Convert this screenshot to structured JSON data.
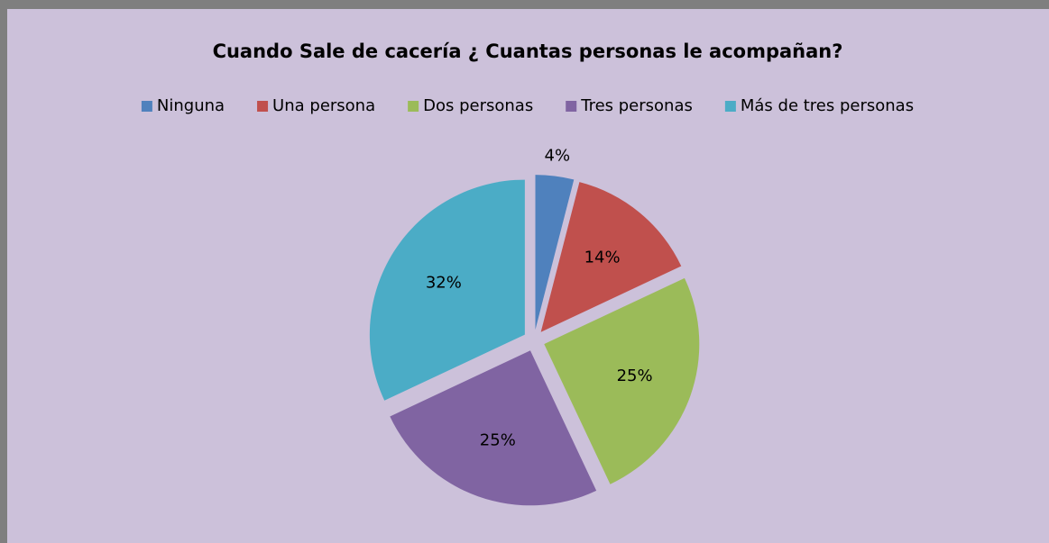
{
  "chart_data": {
    "type": "pie",
    "title": "Cuando Sale de cacería ¿ Cuantas personas le acompañan?",
    "categories": [
      "Ninguna",
      "Una persona",
      "Dos personas",
      "Tres personas",
      "Más de tres personas"
    ],
    "values": [
      4,
      14,
      25,
      25,
      32
    ],
    "value_labels": [
      "4%",
      "14%",
      "25%",
      "25%",
      "32%"
    ],
    "colors": [
      "#4f81bd",
      "#c0504d",
      "#9bbb59",
      "#8064a2",
      "#4bacc6"
    ],
    "legend": "top"
  }
}
